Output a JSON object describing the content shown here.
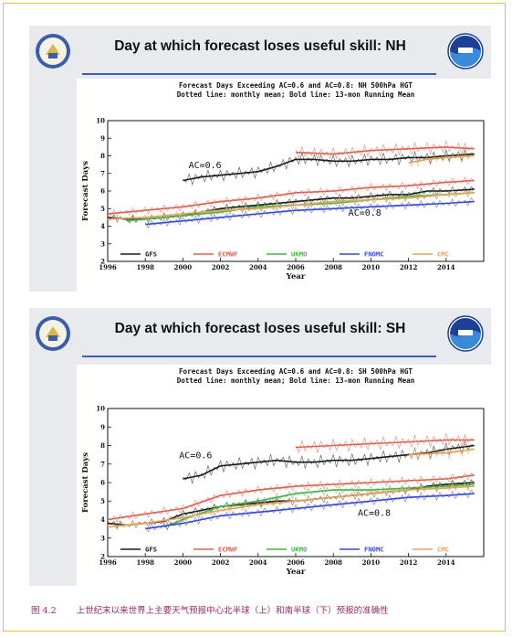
{
  "panels": [
    {
      "id": "nh",
      "header_title": "Day at which forecast loses useful skill: NH",
      "chart_data": {
        "type": "line",
        "title": "Forecast Days Exceeding AC=0.6 and AC=0.8: NH 500hPa HGT",
        "subtitle": "Dotted line: monthly mean; Bold line: 13-mon Running Mean",
        "xlabel": "Year",
        "ylabel": "Forecast Days",
        "xlim": [
          1996,
          2016
        ],
        "ylim": [
          2,
          10
        ],
        "xticks": [
          1996,
          1998,
          2000,
          2002,
          2004,
          2006,
          2008,
          2010,
          2012,
          2014
        ],
        "yticks": [
          2,
          3,
          4,
          5,
          6,
          7,
          8,
          9,
          10
        ],
        "annotations": [
          {
            "text": "AC=0.6",
            "x": 2000.3,
            "y": 7.3
          },
          {
            "text": "AC=0.8",
            "x": 2008.8,
            "y": 4.6
          }
        ],
        "legend": [
          "GFS",
          "ECMWF",
          "UKMO",
          "FNOMC",
          "CMC"
        ],
        "series": [
          {
            "name": "GFS",
            "color": "#1a1a1a",
            "group": "AC=0.6",
            "points": [
              [
                2000.0,
                6.6
              ],
              [
                2001.0,
                6.8
              ],
              [
                2002.0,
                6.9
              ],
              [
                2003.0,
                7.0
              ],
              [
                2004.0,
                7.1
              ],
              [
                2005.0,
                7.4
              ],
              [
                2006.0,
                7.8
              ],
              [
                2007.0,
                7.8
              ],
              [
                2008.0,
                7.7
              ],
              [
                2009.0,
                7.7
              ],
              [
                2010.0,
                7.8
              ],
              [
                2011.0,
                7.8
              ],
              [
                2012.0,
                7.9
              ],
              [
                2013.0,
                7.9
              ],
              [
                2014.0,
                8.0
              ],
              [
                2015.5,
                8.1
              ]
            ]
          },
          {
            "name": "ECMWF",
            "color": "#e0604f",
            "group": "AC=0.6",
            "points": [
              [
                2006.0,
                8.2
              ],
              [
                2008.0,
                8.1
              ],
              [
                2010.0,
                8.3
              ],
              [
                2012.0,
                8.4
              ],
              [
                2014.0,
                8.5
              ],
              [
                2015.5,
                8.4
              ]
            ]
          },
          {
            "name": "CMC",
            "color": "#e2a45a",
            "group": "AC=0.6",
            "points": [
              [
                2012.0,
                7.6
              ],
              [
                2013.0,
                7.8
              ],
              [
                2014.0,
                7.9
              ],
              [
                2015.5,
                8.0
              ]
            ]
          },
          {
            "name": "GFS",
            "color": "#1a1a1a",
            "group": "AC=0.8",
            "points": [
              [
                1996.0,
                4.5
              ],
              [
                1997.0,
                4.4
              ],
              [
                1998.0,
                4.4
              ],
              [
                1999.0,
                4.5
              ],
              [
                2000.0,
                4.6
              ],
              [
                2001.0,
                4.8
              ],
              [
                2002.0,
                5.0
              ],
              [
                2003.0,
                5.1
              ],
              [
                2004.0,
                5.2
              ],
              [
                2005.0,
                5.3
              ],
              [
                2006.0,
                5.4
              ],
              [
                2007.0,
                5.5
              ],
              [
                2008.0,
                5.6
              ],
              [
                2009.0,
                5.6
              ],
              [
                2010.0,
                5.7
              ],
              [
                2011.0,
                5.8
              ],
              [
                2012.0,
                5.8
              ],
              [
                2013.0,
                6.0
              ],
              [
                2014.0,
                6.0
              ],
              [
                2015.5,
                6.1
              ]
            ]
          },
          {
            "name": "ECMWF",
            "color": "#e0604f",
            "group": "AC=0.8",
            "points": [
              [
                1996.0,
                4.7
              ],
              [
                1998.0,
                4.9
              ],
              [
                2000.0,
                5.1
              ],
              [
                2002.0,
                5.4
              ],
              [
                2004.0,
                5.6
              ],
              [
                2006.0,
                5.9
              ],
              [
                2008.0,
                6.0
              ],
              [
                2010.0,
                6.2
              ],
              [
                2012.0,
                6.3
              ],
              [
                2014.0,
                6.5
              ],
              [
                2015.5,
                6.6
              ]
            ]
          },
          {
            "name": "UKMO",
            "color": "#47b247",
            "group": "AC=0.8",
            "points": [
              [
                1997.0,
                4.3
              ],
              [
                1998.0,
                4.4
              ],
              [
                2000.0,
                4.6
              ],
              [
                2002.0,
                4.8
              ],
              [
                2004.0,
                5.1
              ],
              [
                2006.0,
                5.2
              ],
              [
                2008.0,
                5.3
              ],
              [
                2010.0,
                5.5
              ],
              [
                2012.0,
                5.7
              ],
              [
                2014.0,
                5.8
              ],
              [
                2015.5,
                5.9
              ]
            ]
          },
          {
            "name": "FNOMC",
            "color": "#3848d8",
            "group": "AC=0.8",
            "points": [
              [
                1998.0,
                4.1
              ],
              [
                2000.0,
                4.3
              ],
              [
                2002.0,
                4.5
              ],
              [
                2004.0,
                4.7
              ],
              [
                2006.0,
                4.9
              ],
              [
                2008.0,
                5.0
              ],
              [
                2010.0,
                5.1
              ],
              [
                2012.0,
                5.2
              ],
              [
                2014.0,
                5.3
              ],
              [
                2015.5,
                5.4
              ]
            ]
          },
          {
            "name": "CMC",
            "color": "#e2a45a",
            "group": "AC=0.8",
            "points": [
              [
                1996.0,
                4.4
              ],
              [
                1998.0,
                4.5
              ],
              [
                2000.0,
                4.7
              ],
              [
                2002.0,
                4.9
              ],
              [
                2004.0,
                5.0
              ],
              [
                2006.0,
                5.2
              ],
              [
                2008.0,
                5.4
              ],
              [
                2010.0,
                5.5
              ],
              [
                2012.0,
                5.6
              ],
              [
                2014.0,
                5.8
              ],
              [
                2015.5,
                5.9
              ]
            ]
          }
        ]
      }
    },
    {
      "id": "sh",
      "header_title": "Day at which forecast loses useful skill: SH",
      "chart_data": {
        "type": "line",
        "title": "Forecast Days Exceeding AC=0.6 and AC=0.8: SH 500hPa HGT",
        "subtitle": "Dotted line: monthly mean; Bold line: 13-mon Running Mean",
        "xlabel": "Year",
        "ylabel": "Forecast Days",
        "xlim": [
          1996,
          2016
        ],
        "ylim": [
          2,
          10
        ],
        "xticks": [
          1996,
          1998,
          2000,
          2002,
          2004,
          2006,
          2008,
          2010,
          2012,
          2014
        ],
        "yticks": [
          2,
          3,
          4,
          5,
          6,
          7,
          8,
          9,
          10
        ],
        "annotations": [
          {
            "text": "AC=0.6",
            "x": 1999.8,
            "y": 7.3
          },
          {
            "text": "AC=0.8",
            "x": 2009.3,
            "y": 4.2
          }
        ],
        "legend": [
          "GFS",
          "ECMWF",
          "UKMO",
          "FNOMC",
          "CMC"
        ],
        "series": [
          {
            "name": "GFS",
            "color": "#1a1a1a",
            "group": "AC=0.6",
            "points": [
              [
                2000.0,
                6.2
              ],
              [
                2001.0,
                6.4
              ],
              [
                2002.0,
                6.9
              ],
              [
                2003.0,
                7.0
              ],
              [
                2004.0,
                7.1
              ],
              [
                2005.0,
                7.2
              ],
              [
                2006.0,
                7.1
              ],
              [
                2007.0,
                7.1
              ],
              [
                2008.0,
                7.2
              ],
              [
                2009.0,
                7.2
              ],
              [
                2010.0,
                7.3
              ],
              [
                2011.0,
                7.4
              ],
              [
                2012.0,
                7.5
              ],
              [
                2013.0,
                7.6
              ],
              [
                2014.0,
                7.8
              ],
              [
                2015.5,
                8.0
              ]
            ]
          },
          {
            "name": "ECMWF",
            "color": "#e0604f",
            "group": "AC=0.6",
            "points": [
              [
                2006.0,
                7.9
              ],
              [
                2008.0,
                8.0
              ],
              [
                2010.0,
                8.1
              ],
              [
                2012.0,
                8.2
              ],
              [
                2014.0,
                8.3
              ],
              [
                2015.5,
                8.3
              ]
            ]
          },
          {
            "name": "CMC",
            "color": "#e2a45a",
            "group": "AC=0.6",
            "points": [
              [
                2012.0,
                7.5
              ],
              [
                2014.0,
                7.6
              ],
              [
                2015.5,
                7.8
              ]
            ]
          },
          {
            "name": "GFS",
            "color": "#1a1a1a",
            "group": "AC=0.8",
            "points": [
              [
                1996.0,
                3.8
              ],
              [
                1997.0,
                3.7
              ],
              [
                1998.0,
                3.8
              ],
              [
                1999.0,
                3.9
              ],
              [
                2000.0,
                4.3
              ],
              [
                2001.0,
                4.5
              ],
              [
                2002.0,
                4.7
              ],
              [
                2003.0,
                4.8
              ],
              [
                2004.0,
                4.9
              ],
              [
                2005.0,
                5.0
              ],
              [
                2006.0,
                5.0
              ],
              [
                2007.0,
                5.1
              ],
              [
                2008.0,
                5.2
              ],
              [
                2009.0,
                5.3
              ],
              [
                2010.0,
                5.4
              ],
              [
                2011.0,
                5.5
              ],
              [
                2012.0,
                5.6
              ],
              [
                2013.0,
                5.8
              ],
              [
                2014.0,
                5.9
              ],
              [
                2015.5,
                6.0
              ]
            ]
          },
          {
            "name": "ECMWF",
            "color": "#e0604f",
            "group": "AC=0.8",
            "points": [
              [
                1996.0,
                4.0
              ],
              [
                1998.0,
                4.3
              ],
              [
                2000.0,
                4.6
              ],
              [
                2002.0,
                5.3
              ],
              [
                2004.0,
                5.6
              ],
              [
                2006.0,
                5.8
              ],
              [
                2008.0,
                5.9
              ],
              [
                2010.0,
                6.0
              ],
              [
                2012.0,
                6.1
              ],
              [
                2014.0,
                6.2
              ],
              [
                2015.5,
                6.4
              ]
            ]
          },
          {
            "name": "UKMO",
            "color": "#47b247",
            "group": "AC=0.8",
            "points": [
              [
                1999.0,
                3.6
              ],
              [
                2000.0,
                4.0
              ],
              [
                2002.0,
                4.7
              ],
              [
                2004.0,
                5.0
              ],
              [
                2006.0,
                5.4
              ],
              [
                2008.0,
                5.6
              ],
              [
                2010.0,
                5.6
              ],
              [
                2012.0,
                5.7
              ],
              [
                2014.0,
                5.8
              ],
              [
                2015.5,
                5.9
              ]
            ]
          },
          {
            "name": "FNOMC",
            "color": "#3848d8",
            "group": "AC=0.8",
            "points": [
              [
                1998.0,
                3.5
              ],
              [
                2000.0,
                3.8
              ],
              [
                2002.0,
                4.2
              ],
              [
                2004.0,
                4.4
              ],
              [
                2006.0,
                4.6
              ],
              [
                2008.0,
                4.8
              ],
              [
                2010.0,
                5.0
              ],
              [
                2012.0,
                5.2
              ],
              [
                2014.0,
                5.3
              ],
              [
                2015.5,
                5.4
              ]
            ]
          },
          {
            "name": "CMC",
            "color": "#e2a45a",
            "group": "AC=0.8",
            "points": [
              [
                1996.0,
                3.6
              ],
              [
                1998.0,
                3.8
              ],
              [
                2000.0,
                4.1
              ],
              [
                2002.0,
                4.5
              ],
              [
                2004.0,
                4.8
              ],
              [
                2006.0,
                5.0
              ],
              [
                2008.0,
                5.2
              ],
              [
                2010.0,
                5.4
              ],
              [
                2012.0,
                5.6
              ],
              [
                2014.0,
                5.7
              ],
              [
                2015.5,
                5.8
              ]
            ]
          }
        ]
      }
    }
  ],
  "caption": {
    "number": "图 4.2",
    "text": "上世纪末以来世界上主要天气预报中心北半球（上）和南半球（下）预报的准确性"
  },
  "colors": {
    "frame_border": "#e9c233",
    "panel_background": "#e9eaee",
    "header_rule": "#3b5cc4",
    "caption": "#9a2a6a"
  },
  "icons": {
    "left_logo": "commerce-seal-icon",
    "right_logo": "noaa-logo-icon"
  }
}
